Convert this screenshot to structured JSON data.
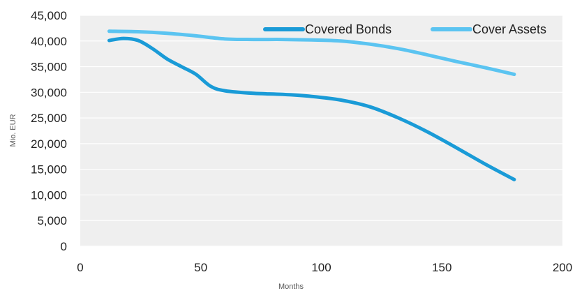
{
  "chart_data": {
    "type": "line",
    "title": "",
    "xlabel": "Months",
    "ylabel": "Mio. EUR",
    "xlim": [
      0,
      200
    ],
    "ylim": [
      0,
      45000
    ],
    "xticks": [
      0,
      50,
      100,
      150,
      200
    ],
    "yticks": [
      0,
      5000,
      10000,
      15000,
      20000,
      25000,
      30000,
      35000,
      40000,
      45000
    ],
    "xtick_labels": [
      "0",
      "50",
      "100",
      "150",
      "200"
    ],
    "ytick_labels": [
      "0",
      "5,000",
      "10,000",
      "15,000",
      "20,000",
      "25,000",
      "30,000",
      "35,000",
      "40,000",
      "45,000"
    ],
    "grid": "horizontal",
    "legend": "top-right",
    "plot_background": "#efefef",
    "series": [
      {
        "name": "Covered Bonds",
        "color": "#1a9bd7",
        "x": [
          12,
          18,
          24,
          30,
          36,
          42,
          48,
          54,
          60,
          72,
          84,
          96,
          108,
          120,
          132,
          144,
          156,
          168,
          180
        ],
        "y": [
          40100,
          40500,
          40100,
          38500,
          36500,
          35000,
          33500,
          31200,
          30300,
          29800,
          29600,
          29200,
          28500,
          27200,
          25000,
          22300,
          19200,
          16000,
          13000
        ]
      },
      {
        "name": "Cover Assets",
        "color": "#5bc4f1",
        "x": [
          12,
          24,
          36,
          48,
          60,
          72,
          84,
          96,
          108,
          120,
          132,
          144,
          156,
          168,
          180
        ],
        "y": [
          41900,
          41800,
          41500,
          41000,
          40400,
          40300,
          40300,
          40200,
          40000,
          39400,
          38500,
          37300,
          36000,
          34800,
          33500
        ]
      }
    ]
  }
}
